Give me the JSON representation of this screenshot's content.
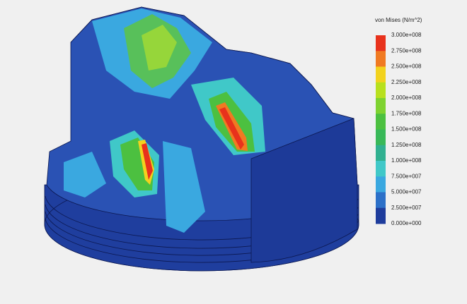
{
  "legend": {
    "title": "von Mises (N/m^2)",
    "labels": [
      "3.000e+008",
      "2.750e+008",
      "2.500e+008",
      "2.250e+008",
      "2.000e+008",
      "1.750e+008",
      "1.500e+008",
      "1.250e+008",
      "1.000e+008",
      "7.500e+007",
      "5.000e+007",
      "2.500e+007",
      "0.000e+000"
    ],
    "colors": [
      "#e8321c",
      "#f07a22",
      "#f2d21e",
      "#b8e01e",
      "#7ed230",
      "#4cc040",
      "#38b858",
      "#30b090",
      "#40c8c8",
      "#3aa8e0",
      "#2c70c8",
      "#1e3c9c"
    ]
  }
}
